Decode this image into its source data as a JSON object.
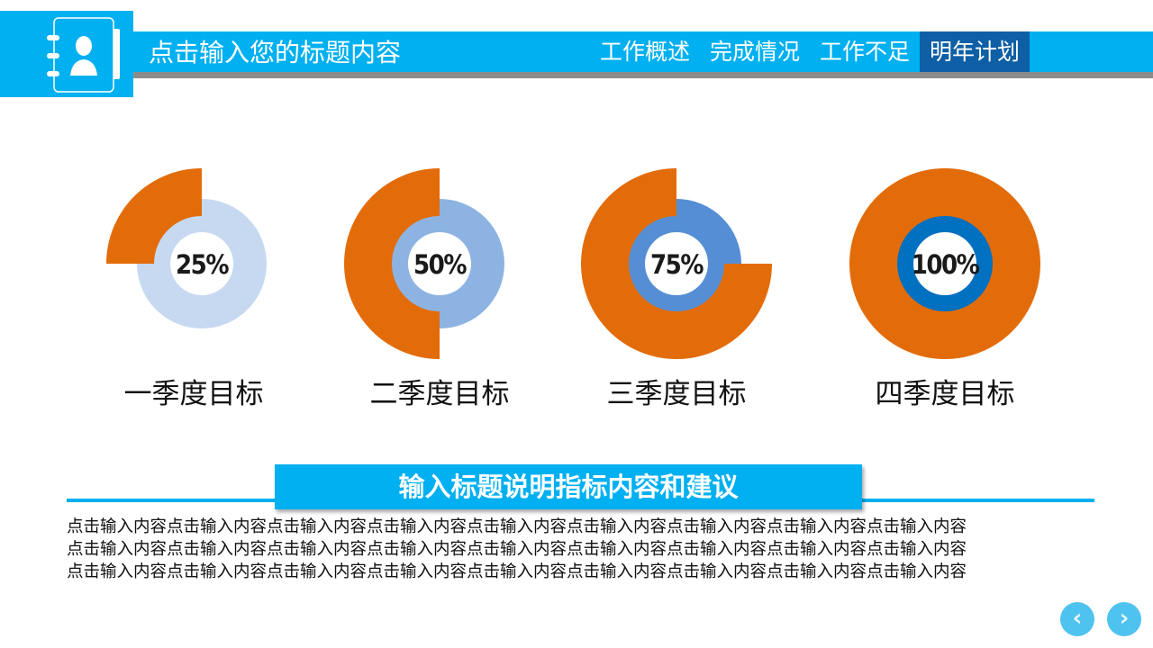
{
  "header": {
    "title": "点击输入您的标题内容",
    "tabs": [
      {
        "label": "工作概述"
      },
      {
        "label": "完成情况"
      },
      {
        "label": "工作不足"
      },
      {
        "label": "明年计划",
        "active": true
      }
    ],
    "icon": "contact-book-icon"
  },
  "chart_data": {
    "type": "pie",
    "categories": [
      "一季度目标",
      "二季度目标",
      "三季度目标",
      "四季度目标"
    ],
    "values": [
      25,
      50,
      75,
      100
    ],
    "value_labels": [
      "25%",
      "50%",
      "75%",
      "100%"
    ],
    "colors": {
      "progress": "#e36c0a",
      "rings": [
        "#c6d9f1",
        "#8db3e2",
        "#558ed5",
        "#0070c0"
      ]
    }
  },
  "section": {
    "title": "输入标题说明指标内容和建议",
    "lines": [
      "点击输入内容点击输入内容点击输入内容点击输入内容点击输入内容点击输入内容点击输入内容点击输入内容点击输入内容",
      "点击输入内容点击输入内容点击输入内容点击输入内容点击输入内容点击输入内容点击输入内容点击输入内容点击输入内容",
      "点击输入内容点击输入内容点击输入内容点击输入内容点击输入内容点击输入内容点击输入内容点击输入内容点击输入内容"
    ]
  },
  "nav": {
    "prev": "‹",
    "next": "›"
  }
}
